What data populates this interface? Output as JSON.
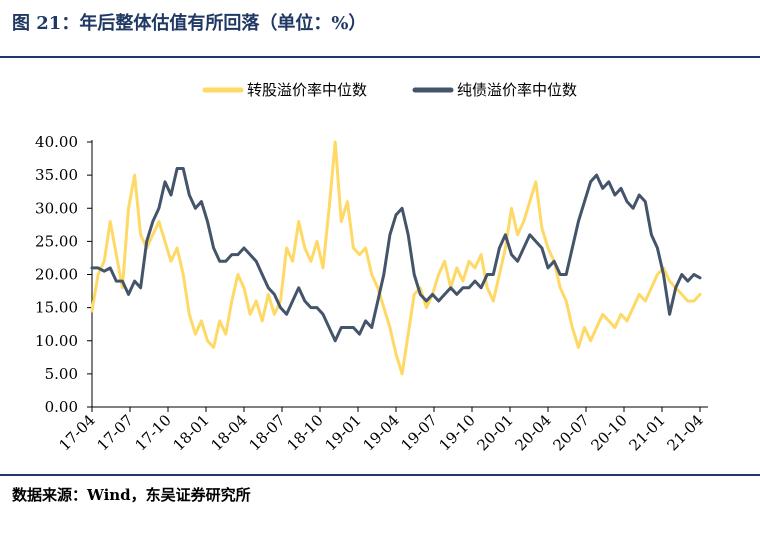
{
  "figure": {
    "title": "图 21：年后整体估值有所回落（单位：%）",
    "source": "数据来源：Wind，东吴证券研究所"
  },
  "chart_data": {
    "type": "line",
    "ylim": [
      0,
      40
    ],
    "yticks": [
      "0.00",
      "5.00",
      "10.00",
      "15.00",
      "20.00",
      "25.00",
      "30.00",
      "35.00",
      "40.00"
    ],
    "xticks": [
      "17-04",
      "17-07",
      "17-10",
      "18-01",
      "18-04",
      "18-07",
      "18-10",
      "19-01",
      "19-04",
      "19-07",
      "19-10",
      "20-01",
      "20-04",
      "20-07",
      "20-10",
      "21-01",
      "21-04"
    ],
    "legend_position": "top-center",
    "grid": false,
    "series": [
      {
        "name": "转股溢价率中位数",
        "color": "#ffd966",
        "points": [
          [
            0,
            14.5
          ],
          [
            0.3,
            20
          ],
          [
            0.6,
            22
          ],
          [
            0.9,
            28
          ],
          [
            1.2,
            23
          ],
          [
            1.5,
            18
          ],
          [
            1.8,
            30
          ],
          [
            2.1,
            35
          ],
          [
            2.4,
            26
          ],
          [
            2.7,
            24
          ],
          [
            3.0,
            26
          ],
          [
            3.3,
            28
          ],
          [
            3.6,
            25
          ],
          [
            3.9,
            22
          ],
          [
            4.2,
            24
          ],
          [
            4.5,
            20
          ],
          [
            4.8,
            14
          ],
          [
            5.1,
            11
          ],
          [
            5.4,
            13
          ],
          [
            5.7,
            10
          ],
          [
            6.0,
            9
          ],
          [
            6.3,
            13
          ],
          [
            6.6,
            11
          ],
          [
            6.9,
            16
          ],
          [
            7.2,
            20
          ],
          [
            7.5,
            18
          ],
          [
            7.8,
            14
          ],
          [
            8.1,
            16
          ],
          [
            8.4,
            13
          ],
          [
            8.7,
            17
          ],
          [
            9.0,
            14
          ],
          [
            9.3,
            16
          ],
          [
            9.6,
            24
          ],
          [
            9.9,
            22
          ],
          [
            10.2,
            28
          ],
          [
            10.5,
            24
          ],
          [
            10.8,
            22
          ],
          [
            11.1,
            25
          ],
          [
            11.4,
            21
          ],
          [
            11.7,
            30
          ],
          [
            12.0,
            40
          ],
          [
            12.3,
            28
          ],
          [
            12.6,
            31
          ],
          [
            12.9,
            24
          ],
          [
            13.2,
            23
          ],
          [
            13.5,
            24
          ],
          [
            13.8,
            20
          ],
          [
            14.1,
            18
          ],
          [
            14.4,
            15
          ],
          [
            14.7,
            12
          ],
          [
            15.0,
            8
          ],
          [
            15.3,
            5
          ],
          [
            15.6,
            11
          ],
          [
            15.9,
            17
          ],
          [
            16.2,
            18
          ],
          [
            16.5,
            15
          ],
          [
            16.8,
            17
          ],
          [
            17.1,
            20
          ],
          [
            17.4,
            22
          ],
          [
            17.7,
            18
          ],
          [
            18.0,
            21
          ],
          [
            18.3,
            19
          ],
          [
            18.6,
            22
          ],
          [
            18.9,
            21
          ],
          [
            19.2,
            23
          ],
          [
            19.5,
            18
          ],
          [
            19.8,
            16
          ],
          [
            20.1,
            20
          ],
          [
            20.4,
            24
          ],
          [
            20.7,
            30
          ],
          [
            21.0,
            26
          ],
          [
            21.3,
            28
          ],
          [
            21.6,
            31
          ],
          [
            21.9,
            34
          ],
          [
            22.2,
            27
          ],
          [
            22.5,
            24
          ],
          [
            22.8,
            22
          ],
          [
            23.1,
            18
          ],
          [
            23.4,
            16
          ],
          [
            23.7,
            12
          ],
          [
            24.0,
            9
          ],
          [
            24.3,
            12
          ],
          [
            24.6,
            10
          ],
          [
            24.9,
            12
          ],
          [
            25.2,
            14
          ],
          [
            25.5,
            13
          ],
          [
            25.8,
            12
          ],
          [
            26.1,
            14
          ],
          [
            26.4,
            13
          ],
          [
            26.7,
            15
          ],
          [
            27.0,
            17
          ],
          [
            27.3,
            16
          ],
          [
            27.6,
            18
          ],
          [
            27.9,
            20
          ],
          [
            28.2,
            21
          ],
          [
            28.5,
            19
          ],
          [
            28.8,
            18
          ],
          [
            29.1,
            17
          ],
          [
            29.4,
            16
          ],
          [
            29.7,
            16
          ],
          [
            30.0,
            17
          ]
        ]
      },
      {
        "name": "纯债溢价率中位数",
        "color": "#44546a",
        "points": [
          [
            0,
            21
          ],
          [
            0.3,
            21
          ],
          [
            0.6,
            20.5
          ],
          [
            0.9,
            21
          ],
          [
            1.2,
            19
          ],
          [
            1.5,
            19
          ],
          [
            1.8,
            17
          ],
          [
            2.1,
            19
          ],
          [
            2.4,
            18
          ],
          [
            2.7,
            25
          ],
          [
            3.0,
            28
          ],
          [
            3.3,
            30
          ],
          [
            3.6,
            34
          ],
          [
            3.9,
            32
          ],
          [
            4.2,
            36
          ],
          [
            4.5,
            36
          ],
          [
            4.8,
            32
          ],
          [
            5.1,
            30
          ],
          [
            5.4,
            31
          ],
          [
            5.7,
            28
          ],
          [
            6.0,
            24
          ],
          [
            6.3,
            22
          ],
          [
            6.6,
            22
          ],
          [
            6.9,
            23
          ],
          [
            7.2,
            23
          ],
          [
            7.5,
            24
          ],
          [
            7.8,
            23
          ],
          [
            8.1,
            22
          ],
          [
            8.4,
            20
          ],
          [
            8.7,
            18
          ],
          [
            9.0,
            17
          ],
          [
            9.3,
            15
          ],
          [
            9.6,
            14
          ],
          [
            9.9,
            16
          ],
          [
            10.2,
            18
          ],
          [
            10.5,
            16
          ],
          [
            10.8,
            15
          ],
          [
            11.1,
            15
          ],
          [
            11.4,
            14
          ],
          [
            11.7,
            12
          ],
          [
            12.0,
            10
          ],
          [
            12.3,
            12
          ],
          [
            12.6,
            12
          ],
          [
            12.9,
            12
          ],
          [
            13.2,
            11
          ],
          [
            13.5,
            13
          ],
          [
            13.8,
            12
          ],
          [
            14.1,
            16
          ],
          [
            14.4,
            20
          ],
          [
            14.7,
            26
          ],
          [
            15.0,
            29
          ],
          [
            15.3,
            30
          ],
          [
            15.6,
            26
          ],
          [
            15.9,
            20
          ],
          [
            16.2,
            17
          ],
          [
            16.5,
            16
          ],
          [
            16.8,
            17
          ],
          [
            17.1,
            16
          ],
          [
            17.4,
            17
          ],
          [
            17.7,
            18
          ],
          [
            18.0,
            17
          ],
          [
            18.3,
            18
          ],
          [
            18.6,
            18
          ],
          [
            18.9,
            19
          ],
          [
            19.2,
            18
          ],
          [
            19.5,
            20
          ],
          [
            19.8,
            20
          ],
          [
            20.1,
            24
          ],
          [
            20.4,
            26
          ],
          [
            20.7,
            23
          ],
          [
            21.0,
            22
          ],
          [
            21.3,
            24
          ],
          [
            21.6,
            26
          ],
          [
            21.9,
            25
          ],
          [
            22.2,
            24
          ],
          [
            22.5,
            21
          ],
          [
            22.8,
            22
          ],
          [
            23.1,
            20
          ],
          [
            23.4,
            20
          ],
          [
            23.7,
            24
          ],
          [
            24.0,
            28
          ],
          [
            24.3,
            31
          ],
          [
            24.6,
            34
          ],
          [
            24.9,
            35
          ],
          [
            25.2,
            33
          ],
          [
            25.5,
            34
          ],
          [
            25.8,
            32
          ],
          [
            26.1,
            33
          ],
          [
            26.4,
            31
          ],
          [
            26.7,
            30
          ],
          [
            27.0,
            32
          ],
          [
            27.3,
            31
          ],
          [
            27.6,
            26
          ],
          [
            27.9,
            24
          ],
          [
            28.2,
            20
          ],
          [
            28.5,
            14
          ],
          [
            28.8,
            18
          ],
          [
            29.1,
            20
          ],
          [
            29.4,
            19
          ],
          [
            29.7,
            20
          ],
          [
            30.0,
            19.5
          ]
        ]
      }
    ]
  }
}
